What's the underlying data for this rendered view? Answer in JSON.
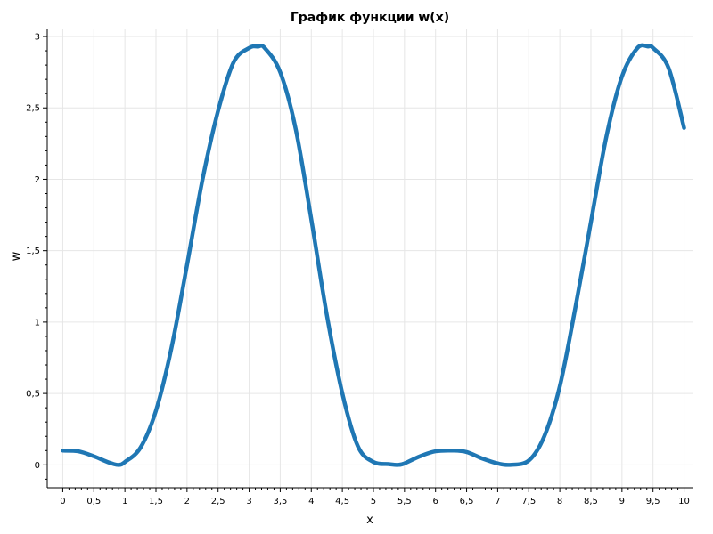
{
  "chart_data": {
    "type": "line",
    "title": "График функции w(x)",
    "xlabel": "x",
    "ylabel": "w",
    "xlim": [
      -0.25,
      10.15
    ],
    "ylim": [
      -0.16,
      3.05
    ],
    "grid": true,
    "legend": "none",
    "x_ticks": [
      0,
      0.5,
      1,
      1.5,
      2,
      2.5,
      3,
      3.5,
      4,
      4.5,
      5,
      5.5,
      6,
      6.5,
      7,
      7.5,
      8,
      8.5,
      9,
      9.5,
      10
    ],
    "x_tick_labels": [
      "0",
      "0,5",
      "1",
      "1,5",
      "2",
      "2,5",
      "3",
      "3,5",
      "4",
      "4,5",
      "5",
      "5,5",
      "6",
      "6,5",
      "7",
      "7,5",
      "8",
      "8,5",
      "9",
      "9,5",
      "10"
    ],
    "y_ticks": [
      0,
      0.5,
      1,
      1.5,
      2,
      2.5,
      3
    ],
    "y_tick_labels": [
      "0",
      "0,5",
      "1",
      "1,5",
      "2",
      "2,5",
      "3"
    ],
    "series": [
      {
        "color": "#1f77b4",
        "x": [
          0,
          0.25,
          0.5,
          0.75,
          0.9,
          1,
          1.25,
          1.5,
          1.75,
          2,
          2.25,
          2.5,
          2.75,
          3,
          3.14,
          3.25,
          3.5,
          3.75,
          4,
          4.25,
          4.5,
          4.75,
          5,
          5.25,
          5.4,
          5.5,
          5.75,
          6,
          6.28,
          6.5,
          6.75,
          7,
          7.2,
          7.5,
          7.75,
          8,
          8.25,
          8.5,
          8.75,
          9,
          9.25,
          9.42,
          9.5,
          9.75,
          10
        ],
        "y": [
          0.1,
          0.095,
          0.06,
          0.015,
          0.0,
          0.02,
          0.12,
          0.38,
          0.82,
          1.4,
          2.0,
          2.48,
          2.82,
          2.92,
          2.93,
          2.92,
          2.75,
          2.35,
          1.72,
          1.05,
          0.5,
          0.13,
          0.02,
          0.005,
          0.0,
          0.01,
          0.06,
          0.095,
          0.1,
          0.09,
          0.045,
          0.01,
          0.0,
          0.03,
          0.2,
          0.55,
          1.1,
          1.7,
          2.3,
          2.72,
          2.92,
          2.93,
          2.92,
          2.78,
          2.36
        ]
      }
    ]
  }
}
